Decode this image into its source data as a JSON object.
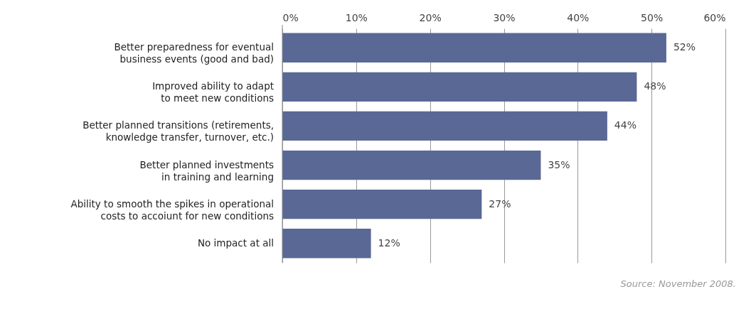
{
  "chart_data": {
    "type": "bar",
    "orientation": "horizontal",
    "categories": [
      "Better preparedness for eventual business events (good and bad)",
      "Improved ability to adapt to meet new conditions",
      "Better planned transitions (retirements, knowledge transfer, turnover, etc.)",
      "Better planned investments in training and learning",
      "Ability to smooth the spikes in operational costs to accoiunt for new conditions",
      "No impact at all"
    ],
    "values": [
      52,
      48,
      44,
      35,
      27,
      12
    ],
    "value_labels": [
      "52%",
      "48%",
      "44%",
      "35%",
      "27%",
      "12%"
    ],
    "color": "#5a6896",
    "xlim": [
      0,
      60
    ],
    "xticks": [
      {
        "value": 0,
        "label": "0%"
      },
      {
        "value": 10,
        "label": "10%"
      },
      {
        "value": 20,
        "label": "20%"
      },
      {
        "value": 30,
        "label": "30%"
      },
      {
        "value": 40,
        "label": "40%"
      },
      {
        "value": 50,
        "label": "50%"
      },
      {
        "value": 60,
        "label": "60%"
      }
    ],
    "grid": "x",
    "annotations": [
      "Source: November 2008."
    ]
  }
}
